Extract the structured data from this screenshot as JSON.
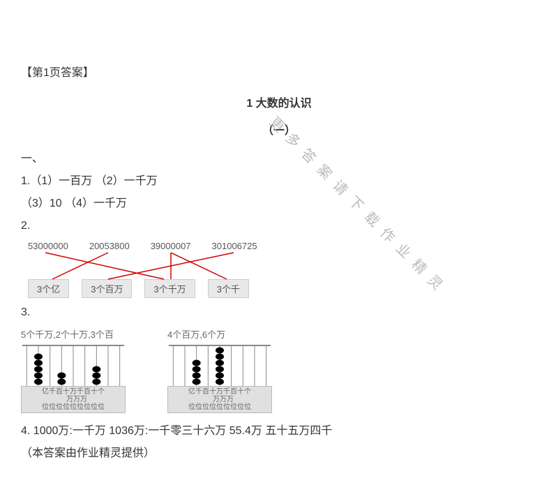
{
  "header": "【第1页答案】",
  "title": "1  大数的认识",
  "subtitle": "（一）",
  "sectionA": "一、",
  "q1": "1.（1）一百万 （2）一千万",
  "q1b": "（3）10 （4）一千万",
  "q2": "2.",
  "matching": {
    "numbers": [
      "53000000",
      "20053800",
      "39000007",
      "301006725"
    ],
    "labels": [
      "3个亿",
      "3个百万",
      "3个千万",
      "3个千"
    ],
    "line_color": "#d00000"
  },
  "q3": "3.",
  "abacus": {
    "left_label": "5个千万,2个十万,3个百",
    "right_label": "4个百万,6个万",
    "digits_row1": "亿千百十万千百十个",
    "digits_row2": "　万万万　　　　　",
    "digits_row3": "位位位位位位位位位",
    "bead_color": "#000000",
    "left_beads": [
      0,
      5,
      0,
      2,
      0,
      0,
      3,
      0,
      0
    ],
    "right_beads": [
      0,
      0,
      4,
      0,
      6,
      0,
      0,
      0,
      0
    ]
  },
  "q4": "4. 1000万:一千万  1036万:一千零三十六万  55.4万  五十五万四千",
  "footer": "（本答案由作业精灵提供）",
  "watermark": "更多答案请下载作业精灵"
}
